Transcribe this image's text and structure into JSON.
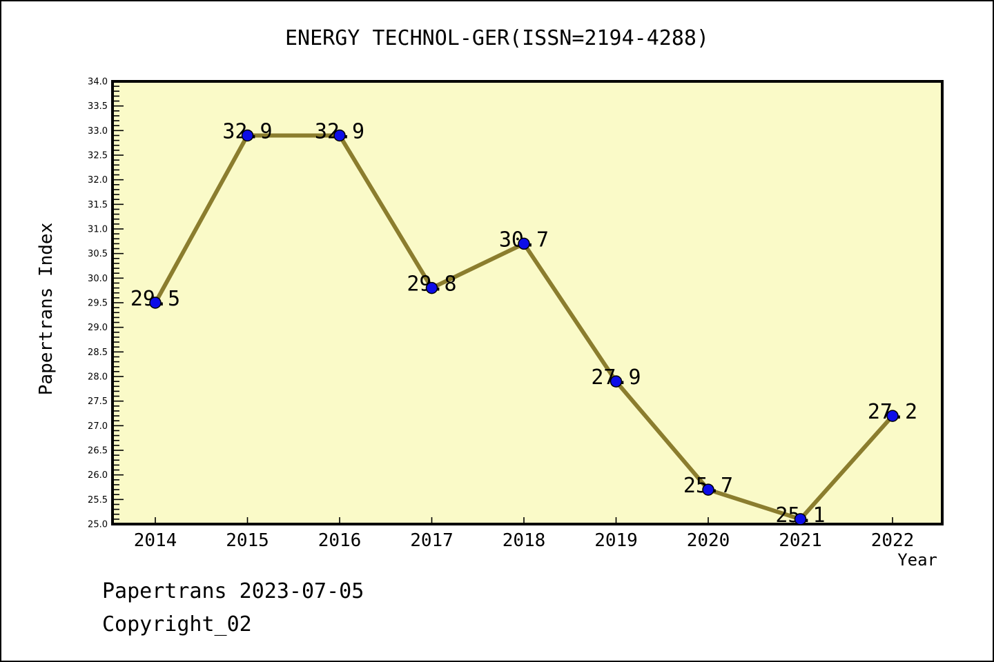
{
  "title": "ENERGY TECHNOL-GER(ISSN=2194-4288)",
  "footer": {
    "line1": "Papertrans 2023-07-05",
    "line2": "Copyright_02"
  },
  "chart_data": {
    "type": "line",
    "title": "ENERGY TECHNOL-GER(ISSN=2194-4288)",
    "xlabel": "Year",
    "ylabel": "Papertrans Index",
    "x": [
      2014,
      2015,
      2016,
      2017,
      2018,
      2019,
      2020,
      2021,
      2022
    ],
    "values": [
      29.5,
      32.9,
      32.9,
      29.8,
      30.7,
      27.9,
      25.7,
      25.1,
      27.2
    ],
    "point_labels": [
      "29.5",
      "32.9",
      "32.9",
      "29.8",
      "30.7",
      "27.9",
      "25.7",
      "25.1",
      "27.2"
    ],
    "ylim": [
      25.0,
      34.0
    ],
    "ytick_step": 0.5,
    "yminor_step": 0.1,
    "grid": false,
    "legend_position": "none",
    "colors": {
      "line": "#8B7D2E",
      "marker": "#0D0DE8",
      "marker_edge": "#000000",
      "plot_bg": "#FAFAC8",
      "axis": "#000000",
      "text": "#000000",
      "figure_bg": "#FFFFFF"
    }
  }
}
